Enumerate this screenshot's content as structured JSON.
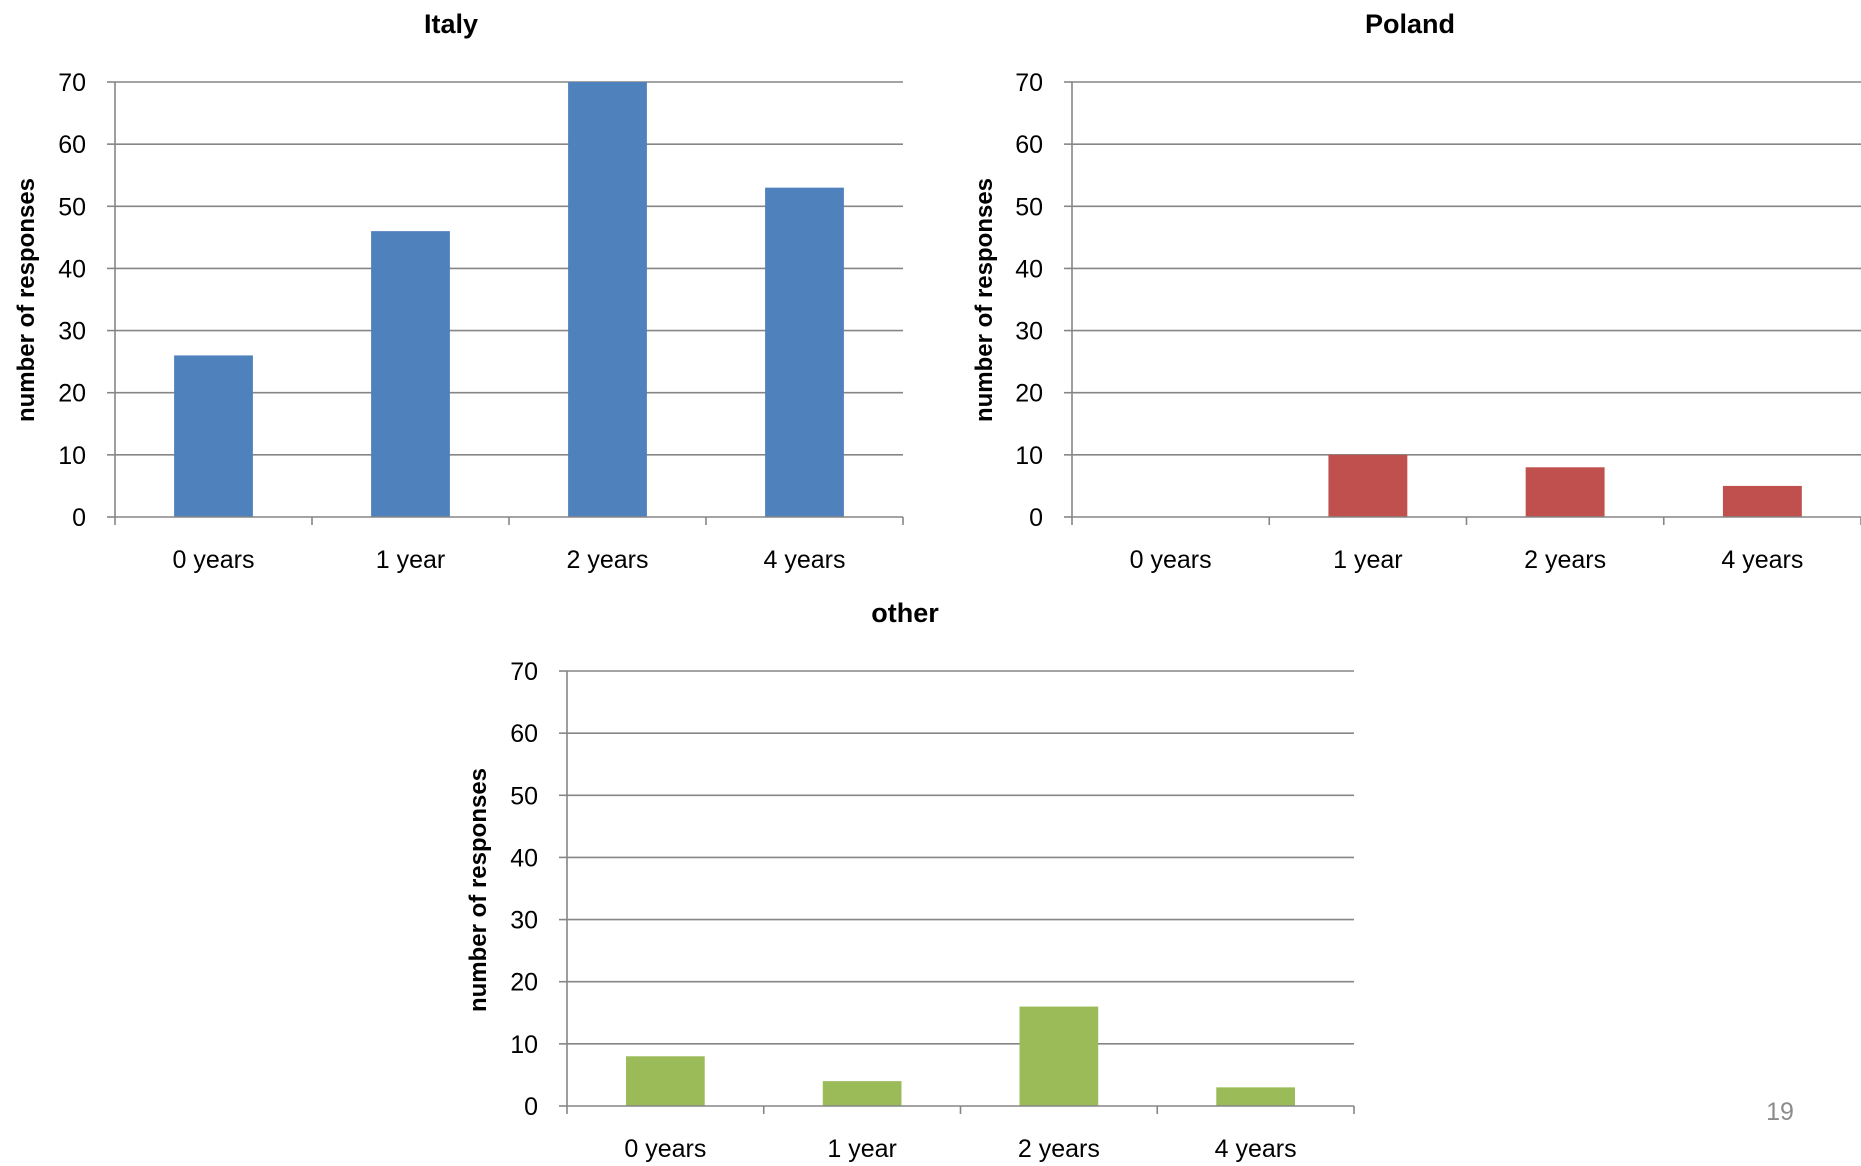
{
  "slide": {
    "page_number": "19"
  },
  "chart_data": [
    {
      "type": "bar",
      "title": "Italy",
      "ylabel": "number of responses",
      "xlabel": "",
      "categories": [
        "0 years",
        "1 year",
        "2 years",
        "4 years"
      ],
      "values": [
        26,
        46,
        70,
        53
      ],
      "ylim": [
        0,
        70
      ],
      "yticks": [
        0,
        10,
        20,
        30,
        40,
        50,
        60,
        70
      ],
      "color": "#4F81BD",
      "grid": true,
      "legend": "none"
    },
    {
      "type": "bar",
      "title": "Poland",
      "ylabel": "number of responses",
      "xlabel": "",
      "categories": [
        "0 years",
        "1 year",
        "2 years",
        "4 years"
      ],
      "values": [
        0,
        10,
        8,
        5
      ],
      "ylim": [
        0,
        70
      ],
      "yticks": [
        0,
        10,
        20,
        30,
        40,
        50,
        60,
        70
      ],
      "color": "#C0504D",
      "grid": true,
      "legend": "none"
    },
    {
      "type": "bar",
      "title": "other",
      "ylabel": "number of responses",
      "xlabel": "",
      "categories": [
        "0 years",
        "1 year",
        "2 years",
        "4 years"
      ],
      "values": [
        8,
        4,
        16,
        3
      ],
      "ylim": [
        0,
        70
      ],
      "yticks": [
        0,
        10,
        20,
        30,
        40,
        50,
        60,
        70
      ],
      "color": "#9BBB59",
      "grid": true,
      "legend": "none"
    }
  ]
}
